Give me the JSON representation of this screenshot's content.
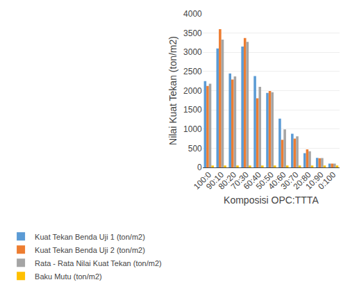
{
  "chart_data": {
    "type": "bar",
    "xlabel": "Komposisi OPC:TTTA",
    "ylabel": "Nilai Kuat Tekan (ton/m2)",
    "categories": [
      "100:0",
      "90:10",
      "80:20",
      "70:30",
      "60:40",
      "50:50",
      "40:60",
      "30:70",
      "20:80",
      "10:90",
      "0:100"
    ],
    "series": [
      {
        "name": "Kuat Tekan Benda Uji 1 (ton/m2)",
        "color": "#5B9BD5",
        "values": [
          2250,
          3100,
          2450,
          3150,
          2380,
          1940,
          1270,
          880,
          370,
          250,
          100
        ]
      },
      {
        "name": "Kuat Tekan Benda Uji 2 (ton/m2)",
        "color": "#ED7D31",
        "values": [
          2120,
          3600,
          2290,
          3370,
          1800,
          1990,
          720,
          750,
          470,
          240,
          100
        ]
      },
      {
        "name": "Rata - Rata Nilai Kuat Tekan (ton/m2)",
        "color": "#A5A5A5",
        "values": [
          2180,
          3330,
          2370,
          3270,
          2100,
          1960,
          990,
          810,
          420,
          245,
          100
        ]
      },
      {
        "name": "Baku Mutu (ton/m2)",
        "color": "#FFC000",
        "values": [
          50,
          50,
          50,
          50,
          50,
          50,
          50,
          50,
          50,
          50,
          50
        ]
      }
    ],
    "ylim": [
      0,
      4000
    ],
    "yticks": [
      0,
      500,
      1000,
      1500,
      2000,
      2500,
      3000,
      3500,
      4000
    ],
    "grid": true,
    "legend": "bottom"
  }
}
